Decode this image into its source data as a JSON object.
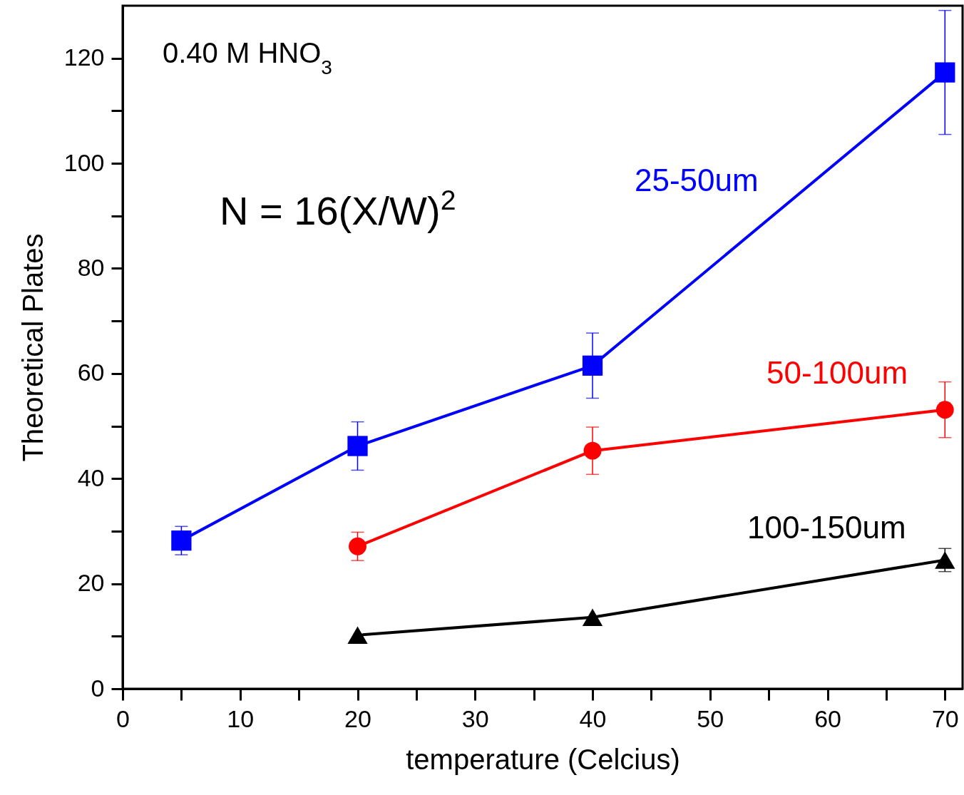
{
  "chart_data": {
    "type": "line",
    "xlabel": "temperature (Celcius)",
    "ylabel": "Theoretical Plates",
    "xlim": [
      0,
      71.5
    ],
    "ylim": [
      0,
      130
    ],
    "xticks": [
      0,
      {
        "value": 5,
        "label": null
      },
      10,
      {
        "value": 15,
        "label": null
      },
      20,
      {
        "value": 25,
        "label": null
      },
      30,
      {
        "value": 35,
        "label": null
      },
      40,
      {
        "value": 45,
        "label": null
      },
      50,
      {
        "value": 55,
        "label": null
      },
      60,
      {
        "value": 65,
        "label": null
      },
      70
    ],
    "yticks": [
      0,
      {
        "value": 10,
        "label": null
      },
      20,
      {
        "value": 30,
        "label": null
      },
      40,
      {
        "value": 50,
        "label": null
      },
      60,
      {
        "value": 70,
        "label": null
      },
      80,
      {
        "value": 90,
        "label": null
      },
      100,
      {
        "value": 110,
        "label": null
      },
      120
    ],
    "grid": false,
    "line_style": "solid",
    "annotations": [
      "0.40 M HNO$_{3}$",
      "N = 16(X/W)$^{2}$"
    ],
    "series": [
      {
        "name": "25-50um",
        "color": "#0000ff",
        "marker": "square",
        "x": [
          5,
          20,
          40,
          70
        ],
        "values": [
          28.2,
          46.2,
          61.5,
          117.3
        ],
        "errors": [
          2.7,
          4.6,
          6.2,
          11.8
        ]
      },
      {
        "name": "50-100um",
        "color": "#ff0000",
        "marker": "circle",
        "x": [
          20,
          40,
          70
        ],
        "values": [
          27.1,
          45.3,
          53.1
        ],
        "errors": [
          2.7,
          4.5,
          5.3
        ]
      },
      {
        "name": "100-150um",
        "color": "#000000",
        "marker": "triangle",
        "x": [
          20,
          40,
          70
        ],
        "values": [
          10.2,
          13.6,
          24.5
        ],
        "errors": [
          null,
          null,
          2.2
        ]
      }
    ]
  }
}
